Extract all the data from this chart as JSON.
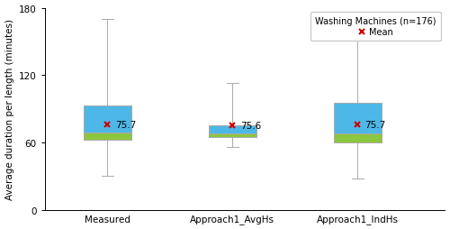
{
  "categories": [
    "Measured",
    "Approach1_AvgHs",
    "Approach1_IndHs"
  ],
  "boxes": [
    {
      "q1": 62,
      "median": 69,
      "q3": 93,
      "whisker_low": 30,
      "whisker_high": 170,
      "mean": 75.7,
      "mean_label": "75.7"
    },
    {
      "q1": 65,
      "median": 68,
      "q3": 75,
      "whisker_low": 56,
      "whisker_high": 113,
      "mean": 75.6,
      "mean_label": "75.6"
    },
    {
      "q1": 60,
      "median": 68,
      "q3": 95,
      "whisker_low": 28,
      "whisker_high": 170,
      "mean": 75.7,
      "mean_label": "75.7"
    }
  ],
  "color_upper": "#4db8e8",
  "color_lower": "#8dc63f",
  "color_mean": "#cc0000",
  "color_whisker": "#aaaaaa",
  "color_box_edge": "#aaaaaa",
  "ylim": [
    0,
    180
  ],
  "yticks": [
    0,
    60,
    120,
    180
  ],
  "ylabel": "Average duration per length (minutes)",
  "legend_title": "Washing Machines (n=176)",
  "legend_mean_label": "Mean",
  "tick_fontsize": 7.5,
  "ylabel_fontsize": 7.5,
  "legend_fontsize": 7,
  "box_width": 0.38,
  "figsize": [
    5.0,
    2.55
  ],
  "dpi": 100
}
